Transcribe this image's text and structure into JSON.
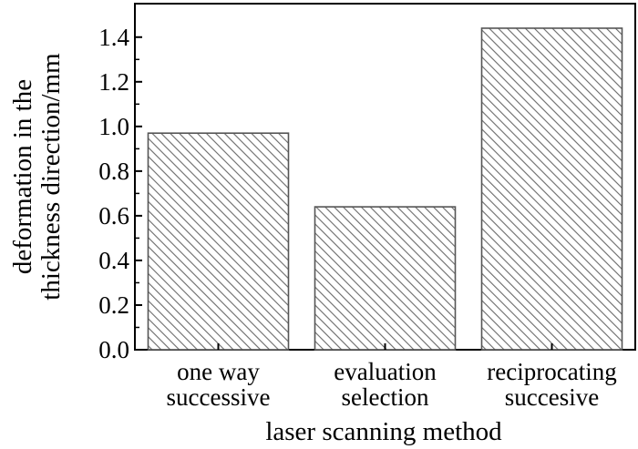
{
  "chart_data": {
    "type": "bar",
    "categories": [
      [
        "one way",
        "successive"
      ],
      [
        "evaluation",
        "selection"
      ],
      [
        "reciprocating",
        "succesive"
      ]
    ],
    "values": [
      0.97,
      0.64,
      1.44
    ],
    "title": "",
    "xlabel": "laser scanning method",
    "ylabel": [
      "deformation in the",
      "thickness direction/mm"
    ],
    "ylim": [
      0,
      1.55
    ],
    "yticks": [
      "0.0",
      "0.2",
      "0.4",
      "0.6",
      "0.8",
      "1.0",
      "1.2",
      "1.4"
    ],
    "grid": false,
    "fill": "hatched",
    "colors": {
      "bar_stroke": "#555555",
      "hatch": "#6a6a6a",
      "axis": "#000000"
    }
  }
}
